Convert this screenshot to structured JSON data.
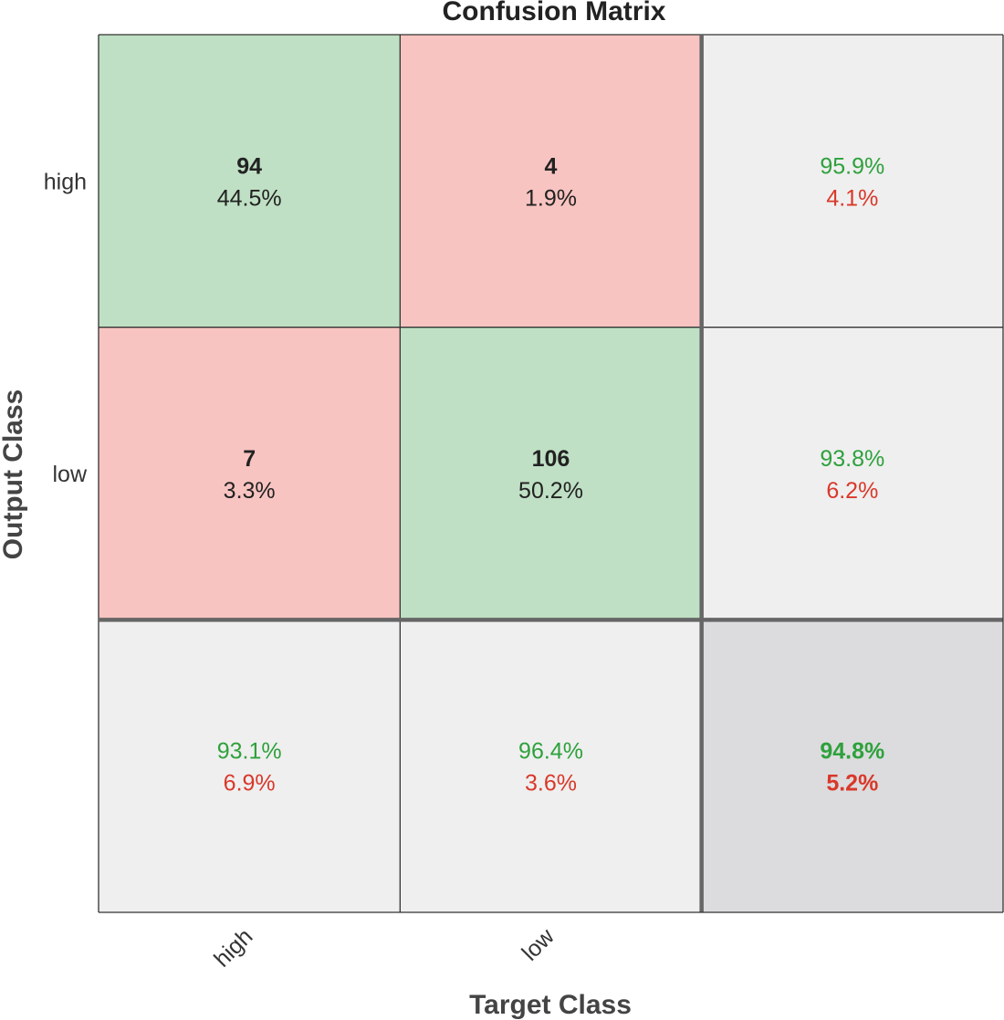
{
  "chart_data": {
    "type": "heatmap",
    "title": "Confusion Matrix",
    "xlabel": "Target Class",
    "ylabel": "Output Class",
    "classes": [
      "high",
      "low"
    ],
    "matrix": [
      [
        {
          "count": "94",
          "percent": "44.5%"
        },
        {
          "count": "4",
          "percent": "1.9%"
        }
      ],
      [
        {
          "count": "7",
          "percent": "3.3%"
        },
        {
          "count": "106",
          "percent": "50.2%"
        }
      ]
    ],
    "row_summary": [
      {
        "correct": "95.9%",
        "incorrect": "4.1%"
      },
      {
        "correct": "93.8%",
        "incorrect": "6.2%"
      }
    ],
    "col_summary": [
      {
        "correct": "93.1%",
        "incorrect": "6.9%"
      },
      {
        "correct": "96.4%",
        "incorrect": "3.6%"
      }
    ],
    "overall": {
      "correct": "94.8%",
      "incorrect": "5.2%"
    }
  },
  "colors": {
    "correct_cell": "#bfe0c4",
    "incorrect_cell": "#f8c4c1",
    "summary_cell": "#efefef",
    "overall_cell": "#dcdcde",
    "correct_text": "#2ea13c",
    "incorrect_text": "#d9382a",
    "grid_line": "#333333",
    "divider_line": "#666666"
  }
}
